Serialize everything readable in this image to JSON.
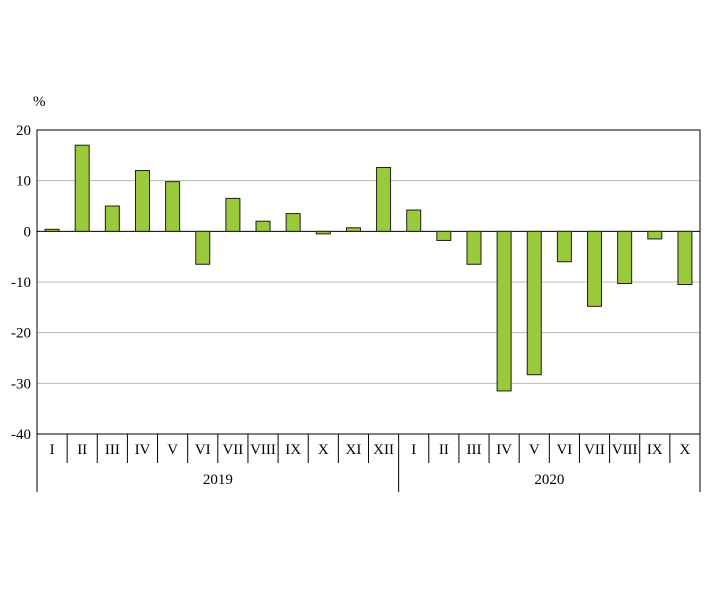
{
  "chart_data": {
    "type": "bar",
    "title": "",
    "ylabel": "%",
    "xlabel": "",
    "ylim": [
      -40,
      20
    ],
    "ytick_step": 10,
    "yticks": [
      20,
      10,
      0,
      -10,
      -20,
      -30,
      -40
    ],
    "grid": true,
    "legend": "none",
    "bar_color": "#9aca3c",
    "bar_stroke": "#1d1d1b",
    "grid_color": "#b8b8b8",
    "axis_color": "#000000",
    "groups": [
      {
        "year": "2019",
        "categories": [
          "I",
          "II",
          "III",
          "IV",
          "V",
          "VI",
          "VII",
          "VIII",
          "IX",
          "X",
          "XI",
          "XII"
        ],
        "values": [
          0.4,
          17,
          5,
          12,
          9.8,
          -6.5,
          6.5,
          2,
          3.5,
          -0.5,
          0.7,
          12.6
        ]
      },
      {
        "year": "2020",
        "categories": [
          "I",
          "II",
          "III",
          "IV",
          "V",
          "VI",
          "VII",
          "VIII",
          "IX",
          "X"
        ],
        "values": [
          4.2,
          -1.8,
          -6.5,
          -31.5,
          -28.3,
          -6,
          -14.8,
          -10.3,
          -1.5,
          -10.5
        ]
      }
    ]
  }
}
